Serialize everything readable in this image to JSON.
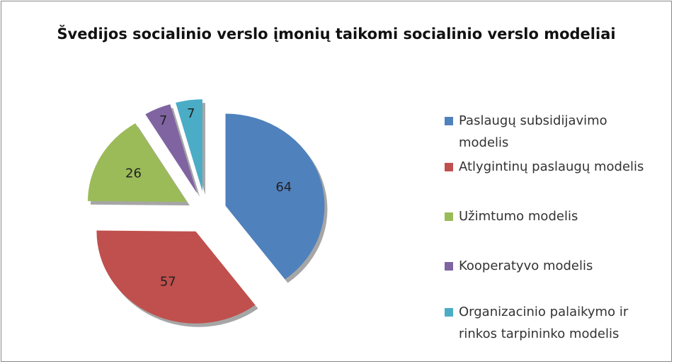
{
  "chart_data": {
    "type": "pie",
    "title": "Švedijos socialinio verslo įmonių taikomi socialinio verslo modeliai",
    "categories": [
      "Paslaugų subsidijavimo modelis",
      "Atlygintinų paslaugų modelis",
      "Užimtumo modelis",
      "Kooperatyvo modelis",
      "Organizacinio palaikymo ir rinkos tarpininko modelis"
    ],
    "values": [
      64,
      57,
      26,
      7,
      7
    ],
    "colors": [
      "#4f81bd",
      "#c0504d",
      "#9bbb59",
      "#8064a2",
      "#4bacc6"
    ],
    "legend": "right"
  }
}
